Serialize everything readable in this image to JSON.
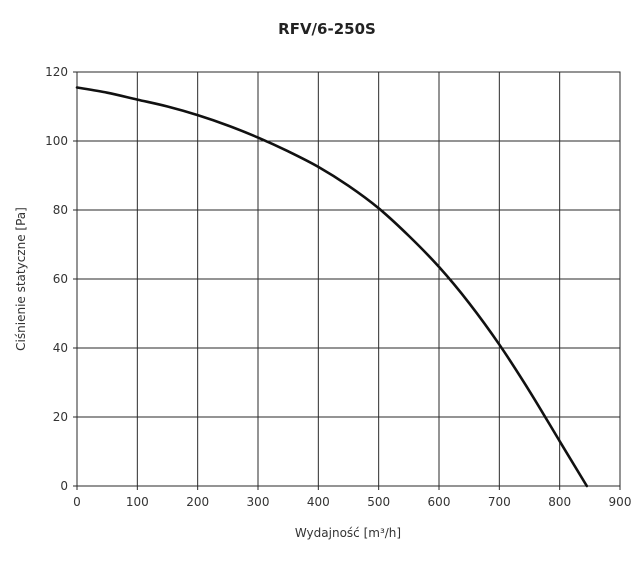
{
  "chart_data": {
    "type": "line",
    "title": "RFV/6-250S",
    "xlabel": "Wydajność [m³/h]",
    "ylabel": "Ciśnienie statyczne [Pa]",
    "xlim": [
      0,
      900
    ],
    "ylim": [
      0,
      120
    ],
    "x_ticks": [
      0,
      100,
      200,
      300,
      400,
      500,
      600,
      700,
      800,
      900
    ],
    "y_ticks": [
      0,
      20,
      40,
      60,
      80,
      100,
      120
    ],
    "grid": true,
    "series": [
      {
        "color": "#111111",
        "x": [
          0,
          50,
          100,
          150,
          200,
          250,
          300,
          350,
          400,
          450,
          500,
          550,
          600,
          650,
          700,
          750,
          800,
          845
        ],
        "y": [
          115.5,
          114,
          112,
          110,
          107.5,
          104.5,
          101,
          97,
          92.5,
          87,
          80.5,
          72.5,
          63.5,
          53,
          41,
          27.5,
          13,
          0
        ]
      }
    ]
  }
}
